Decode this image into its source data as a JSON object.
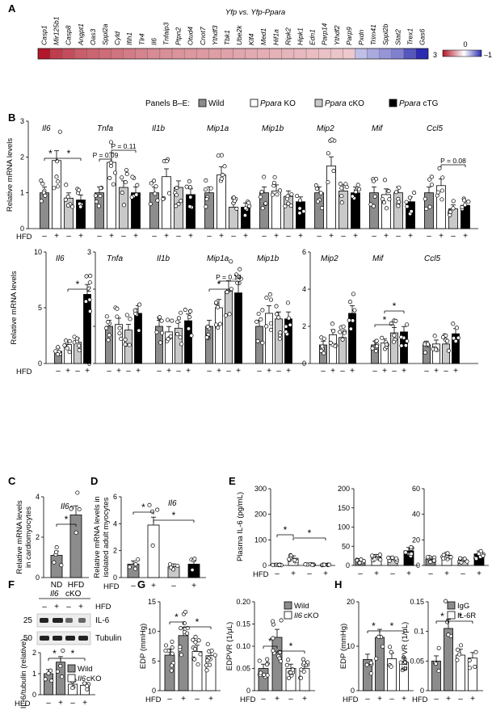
{
  "panel_labels": [
    "A",
    "B",
    "C",
    "D",
    "E",
    "F",
    "G",
    "H"
  ],
  "colors": {
    "wild": "#8c8c8c",
    "ko": "#ffffff",
    "cko": "#c9c9c9",
    "ctg": "#000000",
    "heat_high": "#b2182b",
    "heat_mid": "#ffffff",
    "heat_low": "#2c2cb0"
  },
  "legend": {
    "intro": "Panels B–E:",
    "items": [
      "Wild",
      "Ppara KO",
      "Ppara cKO",
      "Ppara cTG"
    ]
  },
  "hfd_signs": [
    "–",
    "+",
    "–",
    "+"
  ],
  "hfd_label": "HFD",
  "chart_data": [
    {
      "panel": "A",
      "type": "heatmap",
      "title": "Yfp vs. Yfp-Ppara",
      "genes": [
        "Casp1",
        "Mir125b1",
        "Casp8",
        "Angpt1",
        "Oas3",
        "Sppl2a",
        "Cyld",
        "Ifih1",
        "Tlr4",
        "Il6",
        "Tnfaip3",
        "Ptpn2",
        "Otud4",
        "Cnot7",
        "Ythdf3",
        "Tbk1",
        "Ube2k",
        "Klf4",
        "Med1",
        "Hif1a",
        "Ripk2",
        "Hipk1",
        "Edn1",
        "Parp14",
        "Ythdf2",
        "Parp9",
        "Pxdn",
        "Trim41",
        "Sppl2b",
        "Stat2",
        "Trex1",
        "Gas6"
      ],
      "values": [
        3,
        2.5,
        2.3,
        2.1,
        2,
        1.9,
        1.8,
        1.7,
        1.6,
        1.5,
        1.45,
        1.4,
        1.35,
        1.3,
        1.25,
        1.2,
        1.15,
        1.1,
        1.05,
        1,
        0.95,
        0.9,
        0.85,
        0.8,
        0.75,
        0.7,
        -0.3,
        -0.4,
        -0.5,
        -0.6,
        -0.8,
        -1
      ],
      "scale": {
        "max": "3",
        "mid": "0",
        "min": "–1"
      }
    },
    {
      "panel": "B",
      "type": "bar",
      "ylabel": "Relative mRNA levels",
      "ylim": [
        0,
        3
      ],
      "yticks": [
        "0",
        "1",
        "2",
        "3"
      ],
      "groups": [
        {
          "name": "Il6",
          "values": [
            1.0,
            1.9,
            0.85,
            0.8
          ]
        },
        {
          "name": "Tnfa",
          "values": [
            1.0,
            1.85,
            1.15,
            1.0
          ]
        },
        {
          "name": "Il1b",
          "values": [
            1.0,
            1.45,
            1.15,
            0.95
          ]
        },
        {
          "name": "Mip1a",
          "values": [
            1.0,
            1.5,
            0.6,
            0.6
          ]
        },
        {
          "name": "Mip1b",
          "values": [
            1.0,
            1.05,
            0.9,
            0.75
          ]
        },
        {
          "name": "Mip2",
          "values": [
            1.0,
            1.75,
            1.05,
            1.0
          ]
        },
        {
          "name": "Mif",
          "values": [
            1.0,
            0.95,
            1.0,
            0.75
          ]
        },
        {
          "name": "Ccl5",
          "values": [
            1.0,
            1.2,
            0.55,
            0.65
          ]
        }
      ],
      "annotations": [
        {
          "group": "Il6",
          "bracket": [
            0,
            1
          ],
          "text": "*"
        },
        {
          "group": "Il6",
          "bracket": [
            1,
            3
          ],
          "text": "*"
        },
        {
          "group": "Tnfa",
          "bracket": [
            0,
            1
          ],
          "text": "P = 0.09"
        },
        {
          "group": "Tnfa",
          "bracket": [
            1,
            3
          ],
          "text": "P = 0.11"
        },
        {
          "group": "Ccl5",
          "bracket": [
            1,
            3
          ],
          "text": "P = 0.08"
        }
      ]
    },
    {
      "panel": "B2",
      "type": "bar",
      "ylabel": "Relative mRNA levels",
      "subpanels": [
        {
          "ylim": [
            0,
            10
          ],
          "yticks": [
            "0",
            "5",
            "10"
          ],
          "groups": [
            {
              "name": "Il6",
              "values": [
                1.1,
                1.7,
                1.9,
                6.2
              ]
            }
          ],
          "annotations": [
            {
              "group": "Il6",
              "bracket": [
                1,
                3
              ],
              "text": "*"
            }
          ]
        },
        {
          "ylim": [
            0,
            3
          ],
          "yticks": [
            "0",
            "1",
            "2",
            "3"
          ],
          "groups": [
            {
              "name": "Tnfa",
              "values": [
                1.0,
                1.05,
                0.9,
                1.35
              ]
            },
            {
              "name": "Il1b",
              "values": [
                1.0,
                0.85,
                0.95,
                1.15
              ]
            },
            {
              "name": "Mip1a",
              "values": [
                1.0,
                1.5,
                1.95,
                1.9
              ]
            },
            {
              "name": "Mip1b",
              "values": [
                1.0,
                1.35,
                1.2,
                1.2
              ]
            }
          ],
          "annotations": [
            {
              "group": "Mip1a",
              "bracket": [
                0,
                2
              ],
              "text": "*"
            },
            {
              "group": "Mip1a",
              "bracket": [
                1,
                3
              ],
              "text": "P = 0.14"
            }
          ]
        },
        {
          "ylim": [
            0,
            6
          ],
          "yticks": [
            "0",
            "2",
            "4",
            "6"
          ],
          "groups": [
            {
              "name": "Mip2",
              "values": [
                1.0,
                1.55,
                1.4,
                2.7
              ]
            },
            {
              "name": "Mif",
              "values": [
                1.0,
                1.1,
                1.65,
                1.7
              ]
            },
            {
              "name": "Ccl5",
              "values": [
                1.0,
                1.05,
                1.05,
                1.6
              ]
            }
          ],
          "annotations": [
            {
              "group": "Mif",
              "bracket": [
                1,
                3
              ],
              "text": "*"
            },
            {
              "group": "Mif",
              "bracket": [
                0,
                2
              ],
              "text": "*"
            }
          ]
        }
      ]
    },
    {
      "panel": "C",
      "type": "bar",
      "title": "Il6",
      "ylabel": "Relative mRNA levels in cardiomyocytes",
      "categories": [
        "ND",
        "HFD"
      ],
      "values": [
        1.1,
        3.1
      ],
      "ylim": [
        0,
        4
      ],
      "yticks": [
        "0",
        "2",
        "4"
      ],
      "annotations": [
        {
          "bracket": [
            0,
            1
          ],
          "text": "*"
        }
      ]
    },
    {
      "panel": "D",
      "type": "bar",
      "title": "Il6",
      "ylabel": "Relative mRNA levels in isolated adult myocytes",
      "values": [
        1.0,
        3.9,
        0.8,
        1.0
      ],
      "ylim": [
        0,
        6
      ],
      "yticks": [
        "0",
        "2",
        "4",
        "6"
      ],
      "annotations": [
        {
          "bracket": [
            0,
            1
          ],
          "text": "*"
        },
        {
          "bracket": [
            1,
            3
          ],
          "text": "*"
        }
      ]
    },
    {
      "panel": "E",
      "type": "bar",
      "ylabel": "Plasma IL-6 (pg/mL)",
      "subpanels": [
        {
          "ylim": [
            0,
            300
          ],
          "yticks": [
            "0",
            "100",
            "200",
            "300"
          ],
          "values": [
            2,
            28,
            3,
            2
          ],
          "annotations": [
            {
              "bracket": [
                0,
                1
              ],
              "text": "*"
            },
            {
              "bracket": [
                1,
                3
              ],
              "text": "*"
            }
          ]
        },
        {
          "ylim": [
            0,
            200
          ],
          "yticks": [
            "0",
            "50",
            "100",
            "150",
            "200"
          ],
          "values": [
            12,
            22,
            15,
            38
          ]
        },
        {
          "ylim": [
            0,
            60
          ],
          "yticks": [
            "0",
            "20",
            "40",
            "60"
          ],
          "values": [
            5,
            8,
            4,
            9
          ]
        }
      ]
    },
    {
      "panel": "F",
      "type": "bar",
      "title": "Il6 cKO",
      "ylabel": "IL-6/tubulin (relative)",
      "blot": {
        "markers": [
          "25",
          "50"
        ],
        "bands": [
          "IL-6",
          "Tubulin"
        ]
      },
      "legend": [
        "Wild",
        "Il6cKO"
      ],
      "values": [
        1.0,
        1.55,
        0.5,
        0.45
      ],
      "ylim": [
        0,
        2
      ],
      "yticks": [
        "0",
        "1",
        "2"
      ],
      "annotations": [
        {
          "bracket": [
            0,
            1
          ],
          "text": "*"
        },
        {
          "bracket": [
            1,
            3
          ],
          "text": "*"
        }
      ]
    },
    {
      "panel": "G",
      "type": "bar",
      "legend": [
        "Wild",
        "Il6 cKO"
      ],
      "subpanels": [
        {
          "ylabel": "EDP (mmHg)",
          "ylim": [
            0,
            15
          ],
          "yticks": [
            "0",
            "5",
            "10",
            "15"
          ],
          "values": [
            6.0,
            9.3,
            6.6,
            5.9
          ],
          "annotations": [
            {
              "bracket": [
                0,
                1
              ],
              "text": "*"
            },
            {
              "bracket": [
                1,
                3
              ],
              "text": "*"
            }
          ]
        },
        {
          "ylabel": "EDPVR (1/μL)",
          "ylim": [
            0,
            0.2
          ],
          "yticks": [
            "0",
            "0.05",
            "0.10",
            "0.15",
            "0.20"
          ],
          "values": [
            0.05,
            0.12,
            0.05,
            0.05
          ],
          "annotations": [
            {
              "bracket": [
                0,
                1
              ],
              "text": "*"
            },
            {
              "bracket": [
                1,
                3
              ],
              "text": "*"
            }
          ]
        }
      ]
    },
    {
      "panel": "H",
      "type": "bar",
      "legend": [
        "IgG",
        "IL-6R"
      ],
      "subpanels": [
        {
          "ylabel": "EDP (mmHg)",
          "ylim": [
            0,
            20
          ],
          "yticks": [
            "0",
            "10",
            "20"
          ],
          "values": [
            7.0,
            12.0,
            7.2,
            6.4
          ],
          "annotations": [
            {
              "bracket": [
                0,
                1
              ],
              "text": "*"
            },
            {
              "bracket": [
                1,
                3
              ],
              "text": "*"
            }
          ]
        },
        {
          "ylabel": "EDPVR (1/μL)",
          "ylim": [
            0,
            0.15
          ],
          "yticks": [
            "0",
            "0.05",
            "0.1",
            "0.15"
          ],
          "values": [
            0.05,
            0.105,
            0.06,
            0.055
          ],
          "annotations": [
            {
              "bracket": [
                0,
                1
              ],
              "text": "*"
            },
            {
              "bracket": [
                1,
                3
              ],
              "text": "*"
            }
          ]
        }
      ]
    }
  ]
}
